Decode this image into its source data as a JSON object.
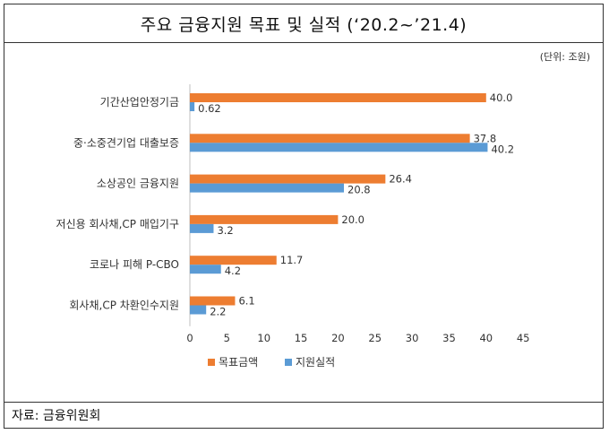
{
  "header": {
    "title": "주요 금융지원 목표 및 실적 (‘20.2~’21.4)"
  },
  "unit_note": "(단위: 조원)",
  "footer": {
    "source": "자료: 금융위원회"
  },
  "colors": {
    "target": "#ED7D31",
    "actual": "#5B9BD5"
  },
  "chart_data": {
    "type": "bar",
    "orientation": "horizontal",
    "categories": [
      "기간산업안정기금",
      "중·소중견기업 대출보증",
      "소상공인 금융지원",
      "저신용 회사채,CP 매입기구",
      "코로나 피해 P-CBO",
      "회사채,CP 차환인수지원"
    ],
    "series": [
      {
        "name": "목표금액",
        "values": [
          40.0,
          37.8,
          26.4,
          20.0,
          11.7,
          6.1
        ],
        "labels": [
          "40.0",
          "37.8",
          "26.4",
          "20.0",
          "11.7",
          "6.1"
        ]
      },
      {
        "name": "지원실적",
        "values": [
          0.62,
          40.2,
          20.8,
          3.2,
          4.2,
          2.2
        ],
        "labels": [
          "0.62",
          "40.2",
          "20.8",
          "3.2",
          "4.2",
          "2.2"
        ]
      }
    ],
    "xlim": [
      0,
      45
    ],
    "xticks": [
      "0",
      "5",
      "10",
      "15",
      "20",
      "25",
      "30",
      "35",
      "40",
      "45"
    ],
    "legend_position": "bottom",
    "grid": false
  }
}
